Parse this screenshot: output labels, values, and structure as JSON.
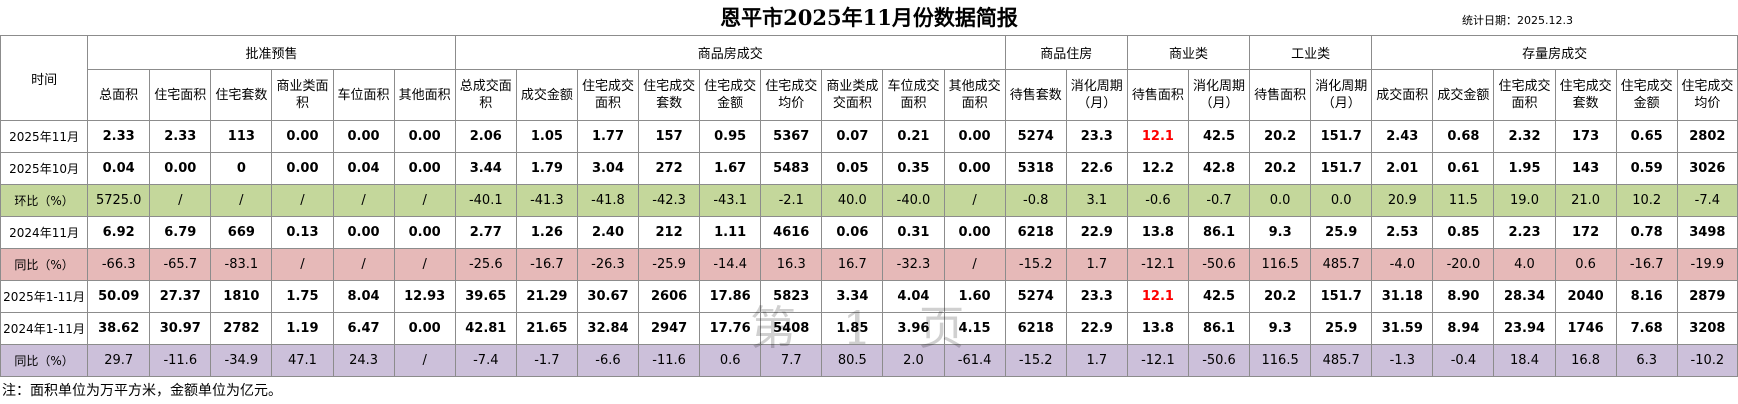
{
  "title": "恩平市2025年11月份数据简报",
  "stat_date": "统计日期：2025.12.3",
  "header": {
    "time": "时间",
    "groups": [
      "批准预售",
      "商品房成交",
      "商品住房",
      "商业类",
      "工业类",
      "存量房成交"
    ],
    "columns": [
      "总面积",
      "住宅面积",
      "住宅套数",
      "商业类面积",
      "车位面积",
      "其他面积",
      "总成交面积",
      "成交金额",
      "住宅成交面积",
      "住宅成交套数",
      "住宅成交金额",
      "住宅成交均价",
      "商业类成交面积",
      "车位成交面积",
      "其他成交面积",
      "待售套数",
      "消化周期（月）",
      "待售面积",
      "消化周期（月）",
      "待售面积",
      "消化周期（月）",
      "成交面积",
      "成交金额",
      "住宅成交面积",
      "住宅成交套数",
      "住宅成交金额",
      "住宅成交均价"
    ]
  },
  "rows": [
    {
      "label": "2025年11月",
      "style": "plain",
      "cells": [
        "2.33",
        "2.33",
        "113",
        "0.00",
        "0.00",
        "0.00",
        "2.06",
        "1.05",
        "1.77",
        "157",
        "0.95",
        "5367",
        "0.07",
        "0.21",
        "0.00",
        "5274",
        "23.3",
        "12.1",
        "42.5",
        "20.2",
        "151.7",
        "2.43",
        "0.68",
        "2.32",
        "173",
        "0.65",
        "2802"
      ]
    },
    {
      "label": "2025年10月",
      "style": "plain",
      "cells": [
        "0.04",
        "0.00",
        "0",
        "0.00",
        "0.04",
        "0.00",
        "3.44",
        "1.79",
        "3.04",
        "272",
        "1.67",
        "5483",
        "0.05",
        "0.35",
        "0.00",
        "5318",
        "22.6",
        "12.2",
        "42.8",
        "20.2",
        "151.7",
        "2.01",
        "0.61",
        "1.95",
        "143",
        "0.59",
        "3026"
      ]
    },
    {
      "label": "环比（%）",
      "style": "green",
      "cells": [
        "5725.0",
        "/",
        "/",
        "/",
        "/",
        "/",
        "-40.1",
        "-41.3",
        "-41.8",
        "-42.3",
        "-43.1",
        "-2.1",
        "40.0",
        "-40.0",
        "/",
        "-0.8",
        "3.1",
        "-0.6",
        "-0.7",
        "0.0",
        "0.0",
        "20.9",
        "11.5",
        "19.0",
        "21.0",
        "10.2",
        "-7.4"
      ]
    },
    {
      "label": "2024年11月",
      "style": "plain",
      "cells": [
        "6.92",
        "6.79",
        "669",
        "0.13",
        "0.00",
        "0.00",
        "2.77",
        "1.26",
        "2.40",
        "212",
        "1.11",
        "4616",
        "0.06",
        "0.31",
        "0.00",
        "6218",
        "22.9",
        "13.8",
        "86.1",
        "9.3",
        "25.9",
        "2.53",
        "0.85",
        "2.23",
        "172",
        "0.78",
        "3498"
      ]
    },
    {
      "label": "同比（%）",
      "style": "pink",
      "cells": [
        "-66.3",
        "-65.7",
        "-83.1",
        "/",
        "/",
        "/",
        "-25.6",
        "-16.7",
        "-26.3",
        "-25.9",
        "-14.4",
        "16.3",
        "16.7",
        "-32.3",
        "/",
        "-15.2",
        "1.7",
        "-12.1",
        "-50.6",
        "116.5",
        "485.7",
        "-4.0",
        "-20.0",
        "4.0",
        "0.6",
        "-16.7",
        "-19.9"
      ]
    },
    {
      "label": "2025年1-11月",
      "style": "plain",
      "cells": [
        "50.09",
        "27.37",
        "1810",
        "1.75",
        "8.04",
        "12.93",
        "39.65",
        "21.29",
        "30.67",
        "2606",
        "17.86",
        "5823",
        "3.34",
        "4.04",
        "1.60",
        "5274",
        "23.3",
        "12.1",
        "42.5",
        "20.2",
        "151.7",
        "31.18",
        "8.90",
        "28.34",
        "2040",
        "8.16",
        "2879"
      ]
    },
    {
      "label": "2024年1-11月",
      "style": "plain",
      "cells": [
        "38.62",
        "30.97",
        "2782",
        "1.19",
        "6.47",
        "0.00",
        "42.81",
        "21.65",
        "32.84",
        "2947",
        "17.76",
        "5408",
        "1.85",
        "3.96",
        "4.15",
        "6218",
        "22.9",
        "13.8",
        "86.1",
        "9.3",
        "25.9",
        "31.59",
        "8.94",
        "23.94",
        "1746",
        "7.68",
        "3208"
      ]
    },
    {
      "label": "同比（%）",
      "style": "purple",
      "cells": [
        "29.7",
        "-11.6",
        "-34.9",
        "47.1",
        "24.3",
        "/",
        "-7.4",
        "-1.7",
        "-6.6",
        "-11.6",
        "0.6",
        "7.7",
        "80.5",
        "2.0",
        "-61.4",
        "-15.2",
        "1.7",
        "-12.1",
        "-50.6",
        "116.5",
        "485.7",
        "-1.3",
        "-0.4",
        "18.4",
        "16.8",
        "6.3",
        "-10.2"
      ]
    }
  ],
  "highlight_color": "#ff0000",
  "note": "注：面积单位为万平方米，金额单位为亿元。",
  "watermark": "第 1 页"
}
